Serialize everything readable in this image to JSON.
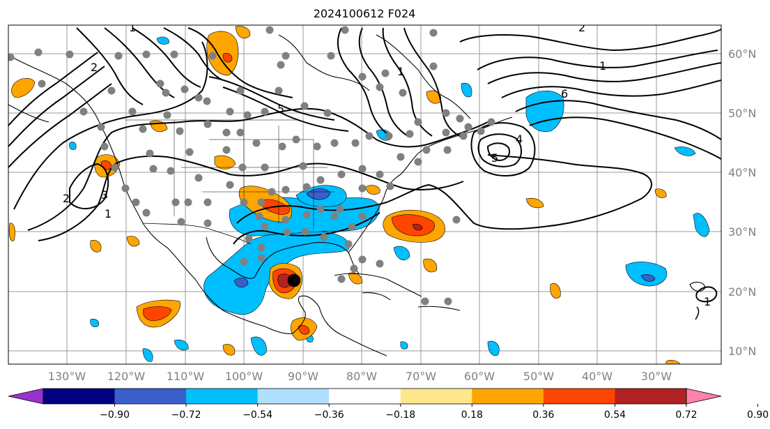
{
  "map": {
    "title": "2024100612 F024",
    "projection": "cylindrical (lon/lat)",
    "extent": {
      "lon": [
        -143,
        -22
      ],
      "lat": [
        7.5,
        65
      ]
    },
    "lon_labels": [
      "130°W",
      "120°W",
      "110°W",
      "100°W",
      "90°W",
      "80°W",
      "70°W",
      "60°W",
      "50°W",
      "40°W",
      "30°W"
    ],
    "lat_labels": [
      "60°N",
      "50°N",
      "40°N",
      "30°N",
      "20°N",
      "10°N"
    ],
    "gridlines": true,
    "grid_color": "#999999",
    "coastline_color": "#000000",
    "contour_color": "#000000"
  },
  "colorbar": {
    "orientation": "horizontal",
    "extend": "both",
    "tick_labels": [
      "−0.90",
      "−0.72",
      "−0.54",
      "−0.36",
      "−0.18",
      "0.18",
      "0.36",
      "0.54",
      "0.72",
      "0.90"
    ],
    "colors": [
      "#9932cc",
      "#000080",
      "#3a5fcd",
      "#00bfff",
      "#b0e0ff",
      "#ffffff",
      "#ffe88c",
      "#ffa500",
      "#ff4500",
      "#b22222",
      "#ff82ab"
    ]
  },
  "features": {
    "hurricane_center": {
      "lon": -91,
      "lat": 22,
      "label": ""
    },
    "contour_labels": [
      "1",
      "2",
      "3",
      "4",
      "5",
      "6"
    ],
    "station_marker_color": "#808080"
  }
}
